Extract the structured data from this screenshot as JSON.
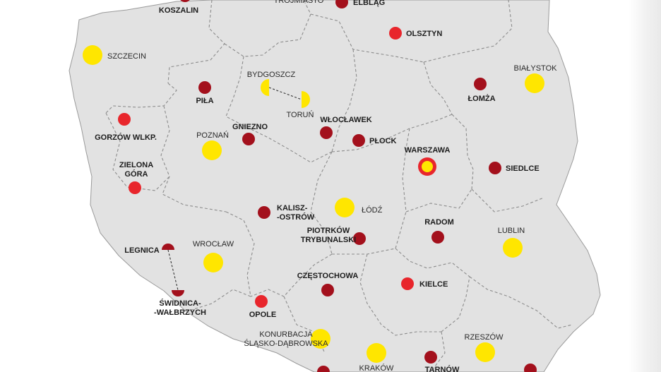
{
  "map": {
    "colors": {
      "land": "#e2e2e2",
      "border": "#8c8c8c",
      "yellow": "#ffe600",
      "red": "#e8262c",
      "dark_red": "#a3101c",
      "text": "#1c1c1c"
    },
    "cities": [
      {
        "id": "koszalin",
        "label": [
          "KOSZALIN"
        ],
        "marker": "dark_red",
        "style": "bold"
      },
      {
        "id": "trojmiasto",
        "label": [
          "TRÓJMIASTO"
        ],
        "marker": "none",
        "style": "light"
      },
      {
        "id": "elblag",
        "label": [
          "ELBLĄG"
        ],
        "marker": "dark_red",
        "style": "bold"
      },
      {
        "id": "olsztyn",
        "label": [
          "OLSZTYN"
        ],
        "marker": "red",
        "style": "bold"
      },
      {
        "id": "szczecin",
        "label": [
          "SZCZECIN"
        ],
        "marker": "yellow",
        "style": "light"
      },
      {
        "id": "bialystok",
        "label": [
          "BIAŁYSTOK"
        ],
        "marker": "yellow",
        "style": "light"
      },
      {
        "id": "bydgoszcz",
        "label": [
          "BYDGOSZCZ"
        ],
        "marker": "yellow-half",
        "style": "light"
      },
      {
        "id": "torun",
        "label": [
          "TORUŃ"
        ],
        "marker": "yellow-half",
        "style": "light"
      },
      {
        "id": "pila",
        "label": [
          "PIŁA"
        ],
        "marker": "dark_red",
        "style": "bold"
      },
      {
        "id": "lomza",
        "label": [
          "ŁOMŻA"
        ],
        "marker": "dark_red",
        "style": "bold"
      },
      {
        "id": "gorzow",
        "label": [
          "GORZÓW WLKP."
        ],
        "marker": "red",
        "style": "bold"
      },
      {
        "id": "wloclawek",
        "label": [
          "WŁOCŁAWEK"
        ],
        "marker": "dark_red",
        "style": "bold"
      },
      {
        "id": "gniezno",
        "label": [
          "GNIEZNO"
        ],
        "marker": "dark_red",
        "style": "bold"
      },
      {
        "id": "poznan",
        "label": [
          "POZNAŃ"
        ],
        "marker": "yellow",
        "style": "light"
      },
      {
        "id": "plock",
        "label": [
          "PŁOCK"
        ],
        "marker": "dark_red",
        "style": "bold"
      },
      {
        "id": "warszawa",
        "label": [
          "WARSZAWA"
        ],
        "marker": "yellow-ring",
        "style": "bold"
      },
      {
        "id": "zielona_gora",
        "label": [
          "ZIELONA",
          "GÓRA"
        ],
        "marker": "red",
        "style": "bold"
      },
      {
        "id": "siedlce",
        "label": [
          "SIEDLCE"
        ],
        "marker": "dark_red",
        "style": "bold"
      },
      {
        "id": "kalisz",
        "label": [
          "KALISZ-",
          "-OSTRÓW"
        ],
        "marker": "dark_red",
        "style": "bold"
      },
      {
        "id": "lodz",
        "label": [
          "ŁÓDŹ"
        ],
        "marker": "yellow",
        "style": "light"
      },
      {
        "id": "radom",
        "label": [
          "RADOM"
        ],
        "marker": "dark_red",
        "style": "bold"
      },
      {
        "id": "piotrkow",
        "label": [
          "PIOTRKÓW",
          "TRYBUNALSKI"
        ],
        "marker": "dark_red",
        "style": "bold"
      },
      {
        "id": "lublin",
        "label": [
          "LUBLIN"
        ],
        "marker": "yellow",
        "style": "light"
      },
      {
        "id": "legnica",
        "label": [
          "LEGNICA"
        ],
        "marker": "dark_red-half",
        "style": "bold"
      },
      {
        "id": "wroclaw",
        "label": [
          "WROCŁAW"
        ],
        "marker": "yellow",
        "style": "light"
      },
      {
        "id": "czestochowa",
        "label": [
          "CZĘSTOCHOWA"
        ],
        "marker": "dark_red",
        "style": "bold"
      },
      {
        "id": "kielce",
        "label": [
          "KIELCE"
        ],
        "marker": "red",
        "style": "bold"
      },
      {
        "id": "swidnica",
        "label": [
          "ŚWIDNICA-",
          "-WAŁBRZYCH"
        ],
        "marker": "dark_red-half",
        "style": "bold"
      },
      {
        "id": "opole",
        "label": [
          "OPOLE"
        ],
        "marker": "red",
        "style": "bold"
      },
      {
        "id": "konurbacja",
        "label": [
          "KONURBACJA",
          "ŚLĄSKO-DĄBROWSKA"
        ],
        "marker": "yellow",
        "style": "light"
      },
      {
        "id": "rzeszow",
        "label": [
          "RZESZÓW"
        ],
        "marker": "yellow",
        "style": "light"
      },
      {
        "id": "krakow",
        "label": [
          "KRAKÓW"
        ],
        "marker": "yellow",
        "style": "light"
      },
      {
        "id": "tarnow",
        "label": [
          "TARNÓW"
        ],
        "marker": "dark_red",
        "style": "bold"
      },
      {
        "id": "bielsko",
        "label": [],
        "marker": "dark_red",
        "style": "bold"
      },
      {
        "id": "przemysl",
        "label": [],
        "marker": "dark_red",
        "style": "bold"
      }
    ]
  }
}
